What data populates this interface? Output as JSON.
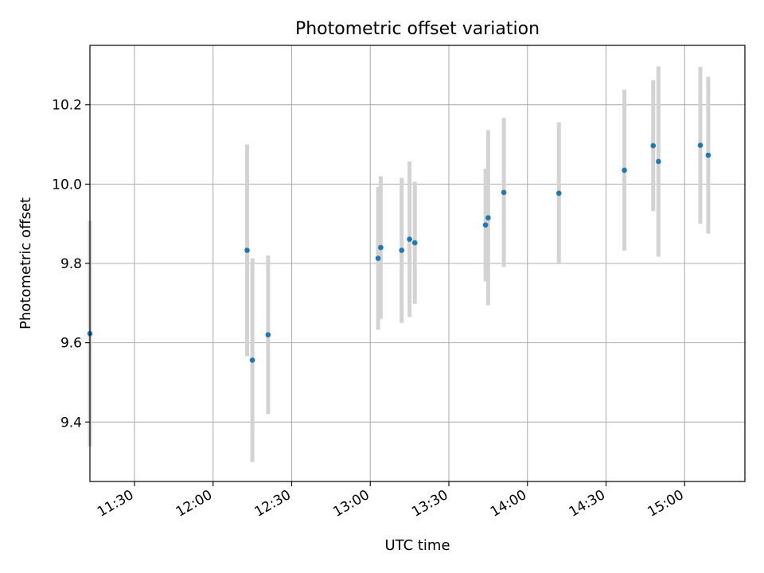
{
  "chart_data": {
    "type": "scatter",
    "title": "Photometric offset variation",
    "xlabel": "UTC time",
    "ylabel": "Photometric offset",
    "xlim": [
      "11:13",
      "15:23"
    ],
    "ylim": [
      9.25,
      10.35
    ],
    "xticks": [
      "11:30",
      "12:00",
      "12:30",
      "13:00",
      "13:30",
      "14:00",
      "14:30",
      "15:00"
    ],
    "yticks": [
      9.4,
      9.6,
      9.8,
      10.0,
      10.2
    ],
    "grid": true,
    "errorbar_color": "#d3d3d3",
    "point_color": "#1f77b4",
    "points": [
      {
        "t": "11:13",
        "y": 9.623,
        "err": 0.285
      },
      {
        "t": "12:13",
        "y": 9.833,
        "err": 0.267
      },
      {
        "t": "12:15",
        "y": 9.556,
        "err": 0.257
      },
      {
        "t": "12:21",
        "y": 9.62,
        "err": 0.2
      },
      {
        "t": "13:03",
        "y": 9.813,
        "err": 0.18
      },
      {
        "t": "13:04",
        "y": 9.84,
        "err": 0.18
      },
      {
        "t": "13:12",
        "y": 9.833,
        "err": 0.183
      },
      {
        "t": "13:15",
        "y": 9.861,
        "err": 0.196
      },
      {
        "t": "13:17",
        "y": 9.852,
        "err": 0.154
      },
      {
        "t": "13:44",
        "y": 9.897,
        "err": 0.142
      },
      {
        "t": "13:45",
        "y": 9.915,
        "err": 0.221
      },
      {
        "t": "13:51",
        "y": 9.979,
        "err": 0.188
      },
      {
        "t": "14:12",
        "y": 9.977,
        "err": 0.179
      },
      {
        "t": "14:37",
        "y": 10.035,
        "err": 0.203
      },
      {
        "t": "14:48",
        "y": 10.097,
        "err": 0.165
      },
      {
        "t": "14:50",
        "y": 10.057,
        "err": 0.24
      },
      {
        "t": "15:06",
        "y": 10.098,
        "err": 0.198
      },
      {
        "t": "15:09",
        "y": 10.073,
        "err": 0.198
      }
    ]
  }
}
